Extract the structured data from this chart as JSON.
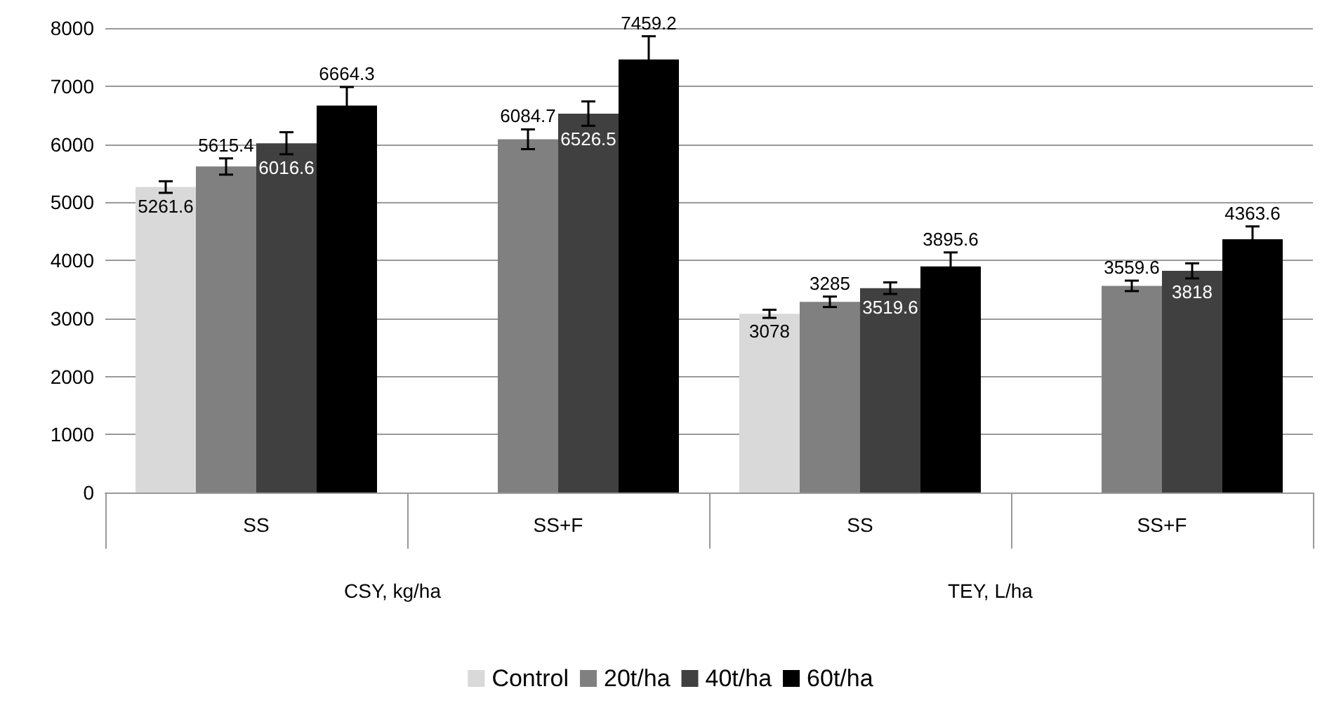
{
  "chart_data": {
    "type": "bar",
    "categories": [
      "SS",
      "SS+F",
      "SS",
      "SS+F"
    ],
    "series": [
      {
        "name": "Control",
        "color": "#d9d9d9",
        "values": [
          5261.6,
          null,
          3078,
          null
        ],
        "errors": [
          100,
          null,
          70,
          null
        ]
      },
      {
        "name": "20t/ha",
        "color": "#808080",
        "values": [
          5615.4,
          6084.7,
          3285,
          3559.6
        ],
        "errors": [
          140,
          170,
          90,
          90
        ]
      },
      {
        "name": "40t/ha",
        "color": "#404040",
        "values": [
          6016.6,
          6526.5,
          3519.6,
          3818
        ],
        "errors": [
          190,
          210,
          100,
          130
        ]
      },
      {
        "name": "60t/ha",
        "color": "#000000",
        "values": [
          6664.3,
          7459.2,
          3895.6,
          4363.6
        ],
        "errors": [
          320,
          400,
          240,
          220
        ]
      }
    ],
    "annotations": [
      "CSY, kg/ha",
      "TEY, L/ha"
    ],
    "ylim": [
      0,
      8000
    ],
    "yticks": [
      0,
      1000,
      2000,
      3000,
      4000,
      5000,
      6000,
      7000,
      8000
    ],
    "grid": "y",
    "legend": "bottom",
    "data_labels": true
  }
}
